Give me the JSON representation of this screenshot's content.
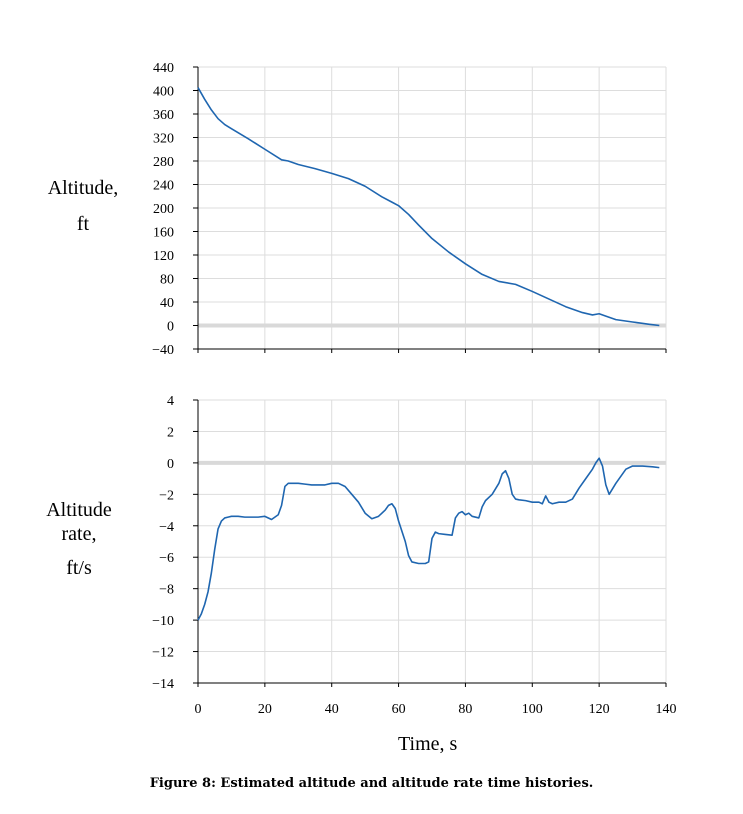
{
  "chart_data": [
    {
      "type": "line",
      "ylabel_lines": [
        "Altitude,",
        "ft"
      ],
      "xlabel": "",
      "xlim": [
        0,
        140
      ],
      "ylim": [
        -40,
        440
      ],
      "xticks": [
        "0",
        "20",
        "40",
        "60",
        "80",
        "100",
        "120",
        "140"
      ],
      "yticks": [
        "440",
        "400",
        "360",
        "320",
        "280",
        "240",
        "200",
        "160",
        "120",
        "80",
        "40",
        "0",
        "−40"
      ],
      "grid": true,
      "zero_line": true,
      "series": [
        {
          "color": "#1f66b0",
          "x": [
            0,
            2,
            4,
            6,
            8,
            10,
            15,
            20,
            25,
            27,
            30,
            35,
            40,
            45,
            50,
            55,
            58,
            60,
            63,
            66,
            70,
            75,
            80,
            85,
            90,
            95,
            100,
            105,
            110,
            115,
            118,
            120,
            122,
            125,
            130,
            135,
            138
          ],
          "y": [
            405,
            385,
            367,
            352,
            342,
            335,
            318,
            300,
            282,
            280,
            274,
            267,
            259,
            250,
            237,
            219,
            210,
            204,
            189,
            171,
            148,
            125,
            105,
            87,
            75,
            70,
            58,
            45,
            32,
            22,
            18,
            20,
            16,
            10,
            6,
            2,
            0
          ]
        }
      ]
    },
    {
      "type": "line",
      "ylabel_lines": [
        "Altitude",
        "rate,",
        "ft/s"
      ],
      "xlabel": "Time, s",
      "xlim": [
        0,
        140
      ],
      "ylim": [
        -14,
        4
      ],
      "xticks": [
        "0",
        "20",
        "40",
        "60",
        "80",
        "100",
        "120",
        "140"
      ],
      "yticks": [
        "4",
        "2",
        "0",
        "−2",
        "−4",
        "−6",
        "−8",
        "−10",
        "−12",
        "−14"
      ],
      "grid": true,
      "zero_line": true,
      "series": [
        {
          "color": "#1f66b0",
          "x": [
            0,
            1,
            2,
            3,
            4,
            5,
            6,
            7,
            8,
            9,
            10,
            12,
            14,
            16,
            18,
            20,
            22,
            24,
            25,
            26,
            27,
            28,
            30,
            32,
            34,
            36,
            38,
            40,
            42,
            44,
            46,
            48,
            50,
            52,
            54,
            56,
            57,
            58,
            59,
            60,
            62,
            63,
            64,
            66,
            68,
            69,
            70,
            71,
            72,
            74,
            76,
            77,
            78,
            79,
            80,
            81,
            82,
            84,
            85,
            86,
            88,
            90,
            91,
            92,
            93,
            94,
            95,
            96,
            98,
            100,
            102,
            103,
            104,
            105,
            106,
            108,
            110,
            112,
            114,
            116,
            118,
            119,
            120,
            121,
            122,
            123,
            125,
            128,
            130,
            133,
            136,
            138
          ],
          "y": [
            -10.0,
            -9.6,
            -9.0,
            -8.2,
            -7.0,
            -5.5,
            -4.2,
            -3.7,
            -3.5,
            -3.45,
            -3.4,
            -3.4,
            -3.45,
            -3.45,
            -3.45,
            -3.4,
            -3.6,
            -3.3,
            -2.7,
            -1.5,
            -1.3,
            -1.3,
            -1.3,
            -1.35,
            -1.4,
            -1.4,
            -1.4,
            -1.3,
            -1.3,
            -1.5,
            -2.0,
            -2.5,
            -3.2,
            -3.55,
            -3.4,
            -3.0,
            -2.7,
            -2.6,
            -2.9,
            -3.7,
            -5.0,
            -5.9,
            -6.3,
            -6.4,
            -6.4,
            -6.3,
            -4.8,
            -4.4,
            -4.5,
            -4.55,
            -4.6,
            -3.5,
            -3.2,
            -3.1,
            -3.3,
            -3.2,
            -3.4,
            -3.5,
            -2.8,
            -2.4,
            -2.0,
            -1.3,
            -0.7,
            -0.5,
            -1.0,
            -2.0,
            -2.3,
            -2.35,
            -2.4,
            -2.5,
            -2.5,
            -2.6,
            -2.1,
            -2.5,
            -2.6,
            -2.5,
            -2.5,
            -2.3,
            -1.6,
            -1.0,
            -0.4,
            0.0,
            0.3,
            -0.2,
            -1.4,
            -2.0,
            -1.3,
            -0.4,
            -0.2,
            -0.2,
            -0.25,
            -0.3
          ]
        }
      ]
    }
  ],
  "caption": "Figure 8: Estimated altitude and altitude rate time histories."
}
